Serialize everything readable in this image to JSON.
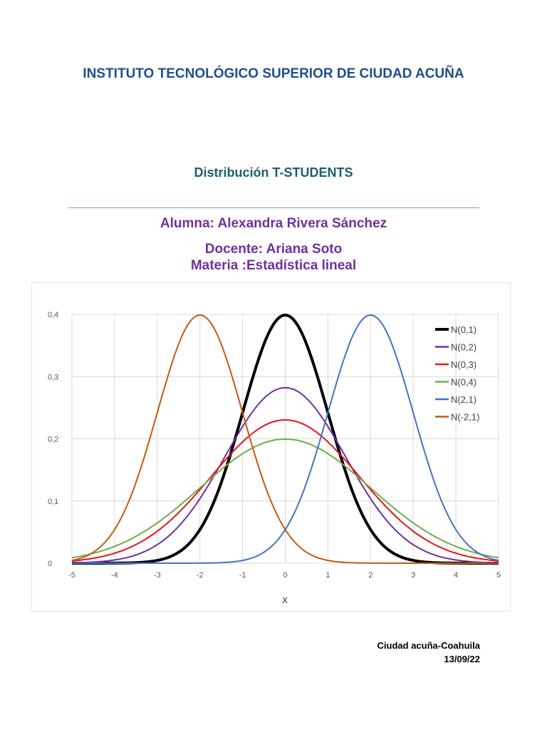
{
  "document": {
    "institution": "INSTITUTO TECNOLÓGICO SUPERIOR DE CIUDAD ACUÑA",
    "topic": "Distribución T-STUDENTS",
    "student": "Alumna: Alexandra Rivera Sánchez",
    "teacher": "Docente: Ariana Soto",
    "subject": "Materia :Estadística lineal",
    "location": "Ciudad acuña-Coahuila",
    "date": "13/09/22"
  },
  "chart_data": {
    "type": "line",
    "title": "",
    "xlabel": "x",
    "ylabel": "",
    "xlim": [
      -5,
      5
    ],
    "ylim": [
      0,
      0.4
    ],
    "x_ticks": [
      "-5",
      "-4",
      "-3",
      "-2",
      "-1",
      "0",
      "1",
      "2",
      "3",
      "4",
      "5"
    ],
    "y_ticks": [
      "0",
      "0,1",
      "0,2",
      "0,3",
      "0,4"
    ],
    "grid": true,
    "legend_position": "top-right",
    "series": [
      {
        "name": "N(0,1)",
        "mean": 0,
        "variance": 1,
        "color": "#000000",
        "peak": 0.399
      },
      {
        "name": "N(0,2)",
        "mean": 0,
        "variance": 2,
        "color": "#7030a0",
        "peak": 0.282
      },
      {
        "name": "N(0,3)",
        "mean": 0,
        "variance": 3,
        "color": "#e8141b",
        "peak": 0.23
      },
      {
        "name": "N(0,4)",
        "mean": 0,
        "variance": 4,
        "color": "#70ad47",
        "peak": 0.199
      },
      {
        "name": "N(2,1)",
        "mean": 2,
        "variance": 1,
        "color": "#4472c4",
        "peak": 0.399
      },
      {
        "name": "N(-2,1)",
        "mean": -2,
        "variance": 1,
        "color": "#c55a11",
        "peak": 0.399
      }
    ]
  }
}
